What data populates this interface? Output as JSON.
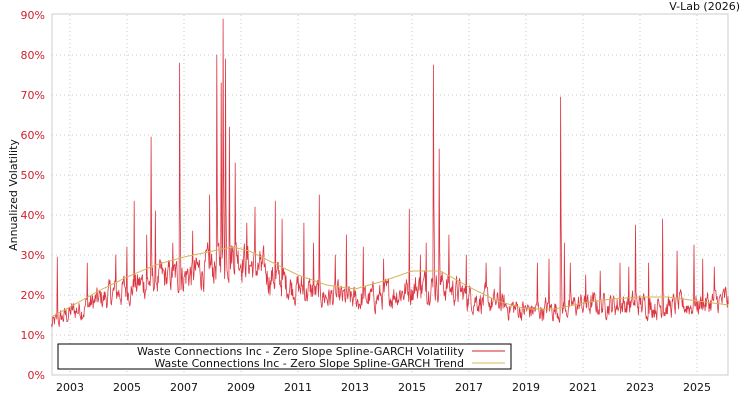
{
  "credit": "V-Lab (2026)",
  "chart_data": {
    "type": "line",
    "title": "",
    "xlabel": "",
    "ylabel": "Annualized Volatility",
    "ylim": [
      0,
      90
    ],
    "xlim": [
      2002.35,
      2026.1
    ],
    "grid": true,
    "legend_position": "lower left",
    "yticks": [
      "0%",
      "10%",
      "20%",
      "30%",
      "40%",
      "50%",
      "60%",
      "70%",
      "80%",
      "90%"
    ],
    "xticks": [
      "2003",
      "2005",
      "2007",
      "2009",
      "2011",
      "2013",
      "2015",
      "2017",
      "2019",
      "2021",
      "2023",
      "2025"
    ],
    "series": [
      {
        "name": "Waste Connections Inc - Zero Slope Spline-GARCH Volatility",
        "color": "#d7202c",
        "baseline": [
          [
            2002.35,
            12
          ],
          [
            2003,
            15
          ],
          [
            2004,
            18
          ],
          [
            2005,
            21
          ],
          [
            2006,
            23
          ],
          [
            2007,
            24
          ],
          [
            2008,
            26
          ],
          [
            2008.8,
            30
          ],
          [
            2009.3,
            27
          ],
          [
            2010,
            24
          ],
          [
            2011,
            21
          ],
          [
            2012,
            19
          ],
          [
            2013,
            18
          ],
          [
            2014,
            19
          ],
          [
            2015,
            21
          ],
          [
            2016,
            22
          ],
          [
            2017,
            19
          ],
          [
            2018,
            17
          ],
          [
            2019,
            15.5
          ],
          [
            2020,
            16
          ],
          [
            2021,
            17
          ],
          [
            2022,
            17
          ],
          [
            2023,
            17
          ],
          [
            2024,
            16.5
          ],
          [
            2025,
            17
          ],
          [
            2026.1,
            18
          ]
        ],
        "spikes": [
          [
            2002.55,
            29.5
          ],
          [
            2003.6,
            28
          ],
          [
            2004.6,
            30
          ],
          [
            2005,
            32
          ],
          [
            2005.25,
            43.5
          ],
          [
            2005.7,
            35
          ],
          [
            2005.85,
            59.5
          ],
          [
            2006,
            41
          ],
          [
            2006.6,
            33
          ],
          [
            2006.85,
            78
          ],
          [
            2007.3,
            36
          ],
          [
            2007.9,
            45
          ],
          [
            2008.15,
            80
          ],
          [
            2008.3,
            73
          ],
          [
            2008.38,
            89
          ],
          [
            2008.45,
            79
          ],
          [
            2008.6,
            62
          ],
          [
            2008.8,
            53
          ],
          [
            2009.2,
            38
          ],
          [
            2009.5,
            42
          ],
          [
            2009.7,
            30
          ],
          [
            2010.2,
            43.5
          ],
          [
            2010.45,
            39
          ],
          [
            2011.2,
            38
          ],
          [
            2011.55,
            33
          ],
          [
            2011.75,
            45
          ],
          [
            2012.3,
            30
          ],
          [
            2012.7,
            35
          ],
          [
            2013.3,
            32
          ],
          [
            2014,
            29
          ],
          [
            2014.9,
            41.5
          ],
          [
            2015.3,
            30
          ],
          [
            2015.5,
            33
          ],
          [
            2015.75,
            77.5
          ],
          [
            2015.95,
            56.5
          ],
          [
            2016.3,
            35
          ],
          [
            2016.9,
            30
          ],
          [
            2017.6,
            28
          ],
          [
            2018.1,
            27
          ],
          [
            2019.4,
            28
          ],
          [
            2019.8,
            29
          ],
          [
            2020.22,
            69.5
          ],
          [
            2020.35,
            33
          ],
          [
            2020.55,
            28
          ],
          [
            2021.1,
            25
          ],
          [
            2021.6,
            26
          ],
          [
            2022.3,
            28
          ],
          [
            2022.6,
            27
          ],
          [
            2022.85,
            37.5
          ],
          [
            2023.3,
            28
          ],
          [
            2023.8,
            39
          ],
          [
            2024.3,
            31
          ],
          [
            2024.9,
            32.5
          ],
          [
            2025.2,
            29
          ],
          [
            2025.6,
            27
          ],
          [
            2026.0,
            22
          ]
        ]
      },
      {
        "name": "Waste Connections Inc - Zero Slope Spline-GARCH Trend",
        "color": "#d6b45a",
        "points": [
          [
            2002.35,
            14.5
          ],
          [
            2003,
            17
          ],
          [
            2004,
            21
          ],
          [
            2005,
            24.5
          ],
          [
            2006,
            27.5
          ],
          [
            2007,
            29.5
          ],
          [
            2008,
            31
          ],
          [
            2008.7,
            32
          ],
          [
            2009.3,
            31
          ],
          [
            2010,
            28.5
          ],
          [
            2011,
            25
          ],
          [
            2012,
            22.5
          ],
          [
            2013,
            21.5
          ],
          [
            2014,
            23.5
          ],
          [
            2015,
            26
          ],
          [
            2016,
            26
          ],
          [
            2017,
            22
          ],
          [
            2018,
            18.5
          ],
          [
            2019,
            16.5
          ],
          [
            2020,
            16.5
          ],
          [
            2021,
            18
          ],
          [
            2022,
            19
          ],
          [
            2023,
            19.5
          ],
          [
            2024,
            19.5
          ],
          [
            2025,
            18.5
          ],
          [
            2026.1,
            17.5
          ]
        ]
      }
    ]
  }
}
